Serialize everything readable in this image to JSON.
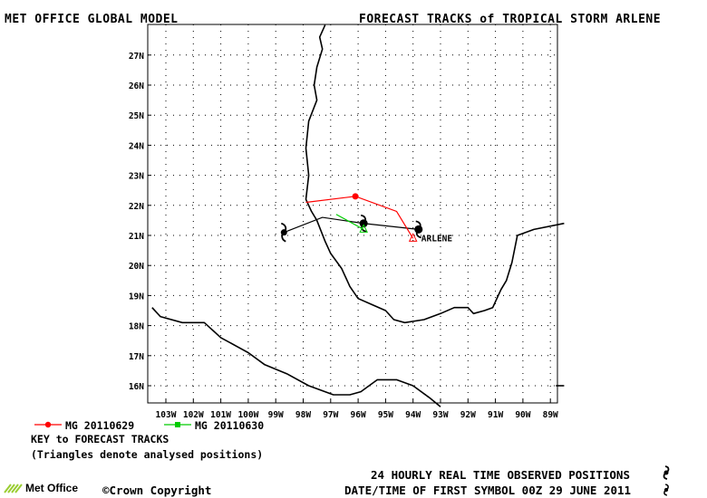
{
  "header": {
    "left_title": "MET OFFICE GLOBAL MODEL",
    "right_title": "FORECAST TRACKS of TROPICAL STORM ARLENE"
  },
  "map": {
    "lat_labels": [
      "27N",
      "26N",
      "25N",
      "24N",
      "23N",
      "22N",
      "21N",
      "20N",
      "19N",
      "18N",
      "17N",
      "16N"
    ],
    "lon_labels": [
      "103W",
      "102W",
      "101W",
      "100W",
      "99W",
      "98W",
      "97W",
      "96W",
      "95W",
      "94W",
      "93W",
      "92W",
      "91W",
      "90W",
      "89W"
    ],
    "storm_label": "ARLENE"
  },
  "chart_data": {
    "type": "map-tracks",
    "lat_range": [
      15.5,
      28
    ],
    "lon_range": [
      -103.5,
      -88.5
    ],
    "observed_track": [
      {
        "lon": -98.7,
        "lat": 21.1
      },
      {
        "lon": -97.3,
        "lat": 21.6
      },
      {
        "lon": -95.8,
        "lat": 21.4
      },
      {
        "lon": -93.8,
        "lat": 21.2
      }
    ],
    "series": [
      {
        "name": "MG 20110629",
        "color": "#ff0000",
        "points": [
          {
            "lon": -94.0,
            "lat": 20.9
          },
          {
            "lon": -94.6,
            "lat": 21.8
          },
          {
            "lon": -96.1,
            "lat": 22.3
          },
          {
            "lon": -97.9,
            "lat": 22.1
          }
        ]
      },
      {
        "name": "MG 20110630",
        "color": "#00cc00",
        "points": [
          {
            "lon": -95.8,
            "lat": 21.2
          },
          {
            "lon": -96.8,
            "lat": 21.7
          }
        ]
      }
    ]
  },
  "legend": {
    "series_1": "MG 20110629",
    "series_2": "MG 20110630",
    "key_title": "KEY to FORECAST TRACKS",
    "key_note": "(Triangles denote analysed positions)"
  },
  "footer": {
    "logo_text": "Met Office",
    "copyright": "©Crown Copyright",
    "observed_note": "24 HOURLY REAL TIME OBSERVED POSITIONS",
    "first_symbol_note": "DATE/TIME OF FIRST SYMBOL 00Z 29 JUNE 2011"
  }
}
